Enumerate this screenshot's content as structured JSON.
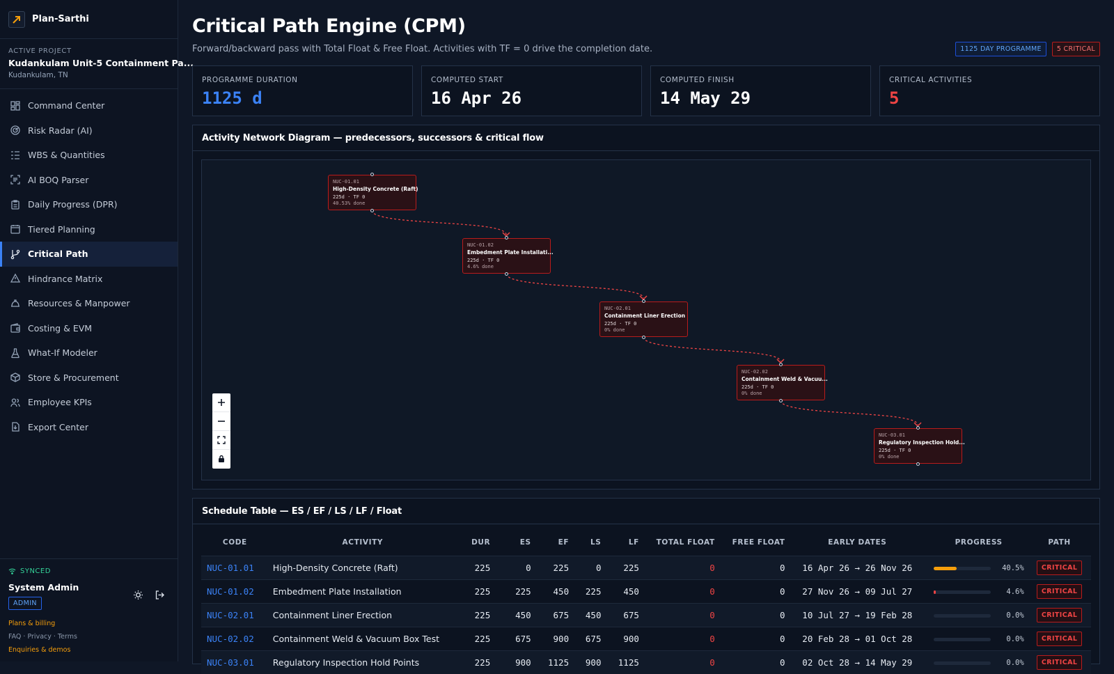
{
  "brand": {
    "name": "Plan-Sarthi",
    "logo_icon": "trend-arrow-icon"
  },
  "project": {
    "kicker": "ACTIVE PROJECT",
    "name": "Kudankulam Unit-5 Containment Pa...",
    "location": "Kudankulam, TN"
  },
  "nav": [
    {
      "label": "Command Center",
      "icon": "dashboard-grid-icon"
    },
    {
      "label": "Risk Radar (AI)",
      "icon": "radar-icon"
    },
    {
      "label": "WBS & Quantities",
      "icon": "list-tree-icon"
    },
    {
      "label": "AI BOQ Parser",
      "icon": "scan-text-icon"
    },
    {
      "label": "Daily Progress (DPR)",
      "icon": "clipboard-icon"
    },
    {
      "label": "Tiered Planning",
      "icon": "calendar-icon"
    },
    {
      "label": "Critical Path",
      "icon": "git-branch-icon",
      "active": true
    },
    {
      "label": "Hindrance Matrix",
      "icon": "warning-triangle-icon"
    },
    {
      "label": "Resources & Manpower",
      "icon": "hard-hat-icon"
    },
    {
      "label": "Costing & EVM",
      "icon": "wallet-icon"
    },
    {
      "label": "What-If Modeler",
      "icon": "flask-icon"
    },
    {
      "label": "Store & Procurement",
      "icon": "package-icon"
    },
    {
      "label": "Employee KPIs",
      "icon": "users-icon"
    },
    {
      "label": "Export Center",
      "icon": "file-download-icon"
    }
  ],
  "footer": {
    "sync_status": "SYNCED",
    "user_name": "System Admin",
    "role": "ADMIN",
    "plans_link": "Plans & billing",
    "legal_links": "FAQ · Privacy · Terms",
    "enquiries_link": "Enquiries & demos"
  },
  "header": {
    "title": "Critical Path Engine (CPM)",
    "subtitle": "Forward/backward pass with Total Float & Free Float. Activities with TF = 0 drive the completion date.",
    "badge_programme": "1125 DAY PROGRAMME",
    "badge_critical": "5 CRITICAL"
  },
  "kpis": [
    {
      "label": "PROGRAMME DURATION",
      "value": "1125 d",
      "tone": "blue"
    },
    {
      "label": "COMPUTED START",
      "value": "16 Apr 26",
      "tone": "white"
    },
    {
      "label": "COMPUTED FINISH",
      "value": "14 May 29",
      "tone": "white"
    },
    {
      "label": "CRITICAL ACTIVITIES",
      "value": "5",
      "tone": "red"
    }
  ],
  "network": {
    "title": "Activity Network Diagram — predecessors, successors & critical flow",
    "nodes": [
      {
        "code": "NUC-01.01",
        "name": "High-Density Concrete (Raft)",
        "meta": "225d · TF 0",
        "done": "40.53% done"
      },
      {
        "code": "NUC-01.02",
        "name": "Embedment Plate Installati...",
        "meta": "225d · TF 0",
        "done": "4.6% done"
      },
      {
        "code": "NUC-02.01",
        "name": "Containment Liner Erection",
        "meta": "225d · TF 0",
        "done": "0% done"
      },
      {
        "code": "NUC-02.02",
        "name": "Containment Weld & Vacuu...",
        "meta": "225d · TF 0",
        "done": "0% done"
      },
      {
        "code": "NUC-03.01",
        "name": "Regulatory Inspection Hold...",
        "meta": "225d · TF 0",
        "done": "0% done"
      }
    ],
    "edge_color": "#ef4444",
    "controls": [
      "zoom-in-icon",
      "zoom-out-icon",
      "fit-view-icon",
      "lock-icon"
    ]
  },
  "schedule": {
    "title": "Schedule Table — ES / EF / LS / LF / Float",
    "columns": [
      "CODE",
      "ACTIVITY",
      "DUR",
      "ES",
      "EF",
      "LS",
      "LF",
      "TOTAL FLOAT",
      "FREE FLOAT",
      "EARLY DATES",
      "PROGRESS",
      "PATH"
    ],
    "rows": [
      {
        "code": "NUC-01.01",
        "activity": "High-Density Concrete (Raft)",
        "dur": "225",
        "es": "0",
        "ef": "225",
        "ls": "0",
        "lf": "225",
        "tf": "0",
        "ff": "0",
        "dates": "16 Apr 26 → 26 Nov 26",
        "progress": 40.5,
        "progress_label": "40.5%",
        "path": "CRITICAL"
      },
      {
        "code": "NUC-01.02",
        "activity": "Embedment Plate Installation",
        "dur": "225",
        "es": "225",
        "ef": "450",
        "ls": "225",
        "lf": "450",
        "tf": "0",
        "ff": "0",
        "dates": "27 Nov 26 → 09 Jul 27",
        "progress": 4.6,
        "progress_label": "4.6%",
        "path": "CRITICAL"
      },
      {
        "code": "NUC-02.01",
        "activity": "Containment Liner Erection",
        "dur": "225",
        "es": "450",
        "ef": "675",
        "ls": "450",
        "lf": "675",
        "tf": "0",
        "ff": "0",
        "dates": "10 Jul 27 → 19 Feb 28",
        "progress": 0,
        "progress_label": "0.0%",
        "path": "CRITICAL"
      },
      {
        "code": "NUC-02.02",
        "activity": "Containment Weld & Vacuum Box Test",
        "dur": "225",
        "es": "675",
        "ef": "900",
        "ls": "675",
        "lf": "900",
        "tf": "0",
        "ff": "0",
        "dates": "20 Feb 28 → 01 Oct 28",
        "progress": 0,
        "progress_label": "0.0%",
        "path": "CRITICAL"
      },
      {
        "code": "NUC-03.01",
        "activity": "Regulatory Inspection Hold Points",
        "dur": "225",
        "es": "900",
        "ef": "1125",
        "ls": "900",
        "lf": "1125",
        "tf": "0",
        "ff": "0",
        "dates": "02 Oct 28 → 14 May 29",
        "progress": 0,
        "progress_label": "0.0%",
        "path": "CRITICAL"
      }
    ]
  },
  "colors": {
    "accent": "#3b82f6",
    "critical": "#ef4444",
    "progress_high": "#f59e0b",
    "progress_low": "#ef4444"
  }
}
